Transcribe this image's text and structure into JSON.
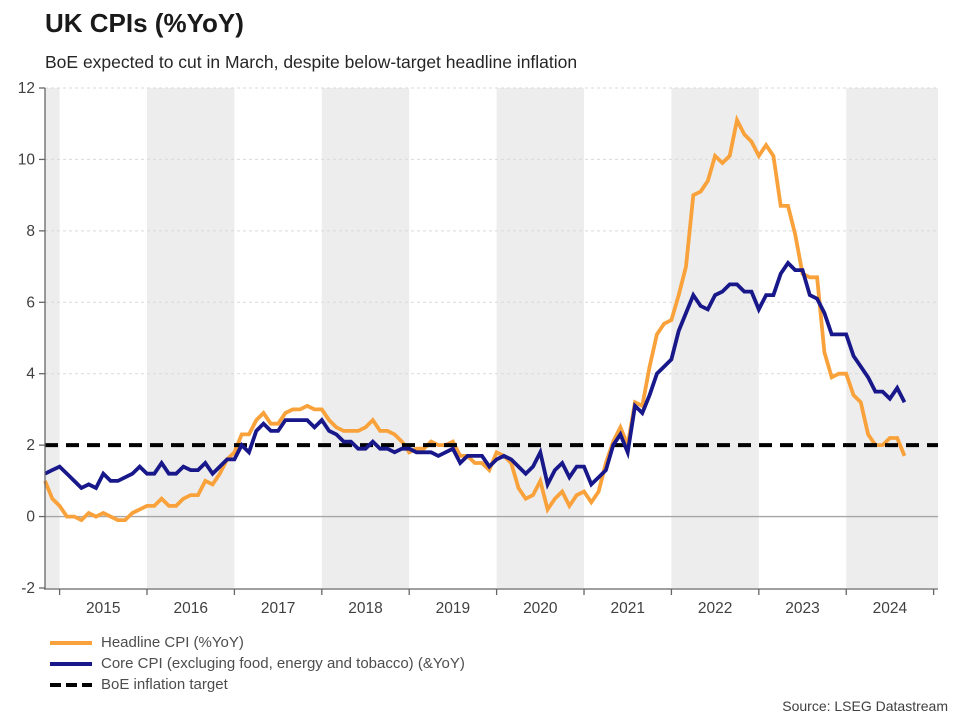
{
  "header": {
    "title": "UK CPIs (%YoY)",
    "subtitle": "BoE expected to cut in March, despite below-target headline inflation"
  },
  "source_note": "Source: LSEG Datastream",
  "legend": {
    "items": [
      {
        "label": "Headline CPI (%YoY)",
        "color": "#F9A23B",
        "style": "solid"
      },
      {
        "label": "Core CPI (excluging food, energy and tobacco) (&YoY)",
        "color": "#18188B",
        "style": "solid"
      },
      {
        "label": "BoE inflation target",
        "color": "#000000",
        "style": "dashed"
      }
    ]
  },
  "colors": {
    "headline": "#F9A23B",
    "core": "#18188B",
    "target": "#000000",
    "band": "#ededed",
    "grid": "#d9d9d9",
    "zero_line": "#a6a6a6",
    "axis": "#666666",
    "tick_label": "#404040"
  },
  "chart_data": {
    "type": "line",
    "title": "UK CPIs (%YoY)",
    "subtitle": "BoE expected to cut in March, despite below-target headline inflation",
    "frequency": "monthly",
    "start": "2014-11",
    "end": "2024-09",
    "ylim": [
      -2,
      12
    ],
    "y_ticks": [
      -2,
      0,
      2,
      4,
      6,
      8,
      10,
      12
    ],
    "x_domain": [
      2014.833,
      2025.05
    ],
    "x_tick_years": [
      2015,
      2016,
      2017,
      2018,
      2019,
      2020,
      2021,
      2022,
      2023,
      2024,
      2025
    ],
    "x_tick_labels": [
      "2015",
      "2016",
      "2017",
      "2018",
      "2019",
      "2020",
      "2021",
      "2022",
      "2023",
      "2024"
    ],
    "shaded_bands": [
      [
        2014.833,
        2015
      ],
      [
        2016,
        2017
      ],
      [
        2018,
        2019
      ],
      [
        2020,
        2021
      ],
      [
        2022,
        2023
      ],
      [
        2024,
        2025.05
      ]
    ],
    "grid": true,
    "legend_position": "bottom-left",
    "target_line": {
      "label": "BoE inflation target",
      "value": 2,
      "color": "#000000"
    },
    "series": [
      {
        "name": "Headline CPI (%YoY)",
        "color": "#F9A23B",
        "values": [
          1.0,
          0.5,
          0.3,
          0.0,
          0.0,
          -0.1,
          0.1,
          0.0,
          0.1,
          0.0,
          -0.1,
          -0.1,
          0.1,
          0.2,
          0.3,
          0.3,
          0.5,
          0.3,
          0.3,
          0.5,
          0.6,
          0.6,
          1.0,
          0.9,
          1.2,
          1.6,
          1.8,
          2.3,
          2.3,
          2.7,
          2.9,
          2.6,
          2.6,
          2.9,
          3.0,
          3.0,
          3.1,
          3.0,
          3.0,
          2.7,
          2.5,
          2.4,
          2.4,
          2.4,
          2.5,
          2.7,
          2.4,
          2.4,
          2.3,
          2.1,
          1.8,
          1.9,
          1.9,
          2.1,
          2.0,
          2.0,
          2.1,
          1.7,
          1.7,
          1.5,
          1.5,
          1.3,
          1.8,
          1.7,
          1.5,
          0.8,
          0.5,
          0.6,
          1.0,
          0.2,
          0.5,
          0.7,
          0.3,
          0.6,
          0.7,
          0.4,
          0.7,
          1.5,
          2.1,
          2.5,
          2.0,
          3.2,
          3.1,
          4.2,
          5.1,
          5.4,
          5.5,
          6.2,
          7.0,
          9.0,
          9.1,
          9.4,
          10.1,
          9.9,
          10.1,
          11.1,
          10.7,
          10.5,
          10.1,
          10.4,
          10.1,
          8.7,
          8.7,
          7.9,
          6.8,
          6.7,
          6.7,
          4.6,
          3.9,
          4.0,
          4.0,
          3.4,
          3.2,
          2.3,
          2.0,
          2.0,
          2.2,
          2.2,
          1.7
        ]
      },
      {
        "name": "Core CPI (excluging food, energy and tobacco) (&YoY)",
        "color": "#18188B",
        "values": [
          1.2,
          1.3,
          1.4,
          1.2,
          1.0,
          0.8,
          0.9,
          0.8,
          1.2,
          1.0,
          1.0,
          1.1,
          1.2,
          1.4,
          1.2,
          1.2,
          1.5,
          1.2,
          1.2,
          1.4,
          1.3,
          1.3,
          1.5,
          1.2,
          1.4,
          1.6,
          1.6,
          2.0,
          1.8,
          2.4,
          2.6,
          2.4,
          2.4,
          2.7,
          2.7,
          2.7,
          2.7,
          2.5,
          2.7,
          2.4,
          2.3,
          2.1,
          2.1,
          1.9,
          1.9,
          2.1,
          1.9,
          1.9,
          1.8,
          1.9,
          1.9,
          1.8,
          1.8,
          1.8,
          1.7,
          1.8,
          1.9,
          1.5,
          1.7,
          1.7,
          1.7,
          1.4,
          1.6,
          1.7,
          1.6,
          1.4,
          1.2,
          1.4,
          1.8,
          0.9,
          1.3,
          1.5,
          1.1,
          1.4,
          1.4,
          0.9,
          1.1,
          1.3,
          2.0,
          2.3,
          1.8,
          3.1,
          2.9,
          3.4,
          4.0,
          4.2,
          4.4,
          5.2,
          5.7,
          6.2,
          5.9,
          5.8,
          6.2,
          6.3,
          6.5,
          6.5,
          6.3,
          6.3,
          5.8,
          6.2,
          6.2,
          6.8,
          7.1,
          6.9,
          6.9,
          6.2,
          6.1,
          5.7,
          5.1,
          5.1,
          5.1,
          4.5,
          4.2,
          3.9,
          3.5,
          3.5,
          3.3,
          3.6,
          3.2
        ]
      }
    ]
  }
}
